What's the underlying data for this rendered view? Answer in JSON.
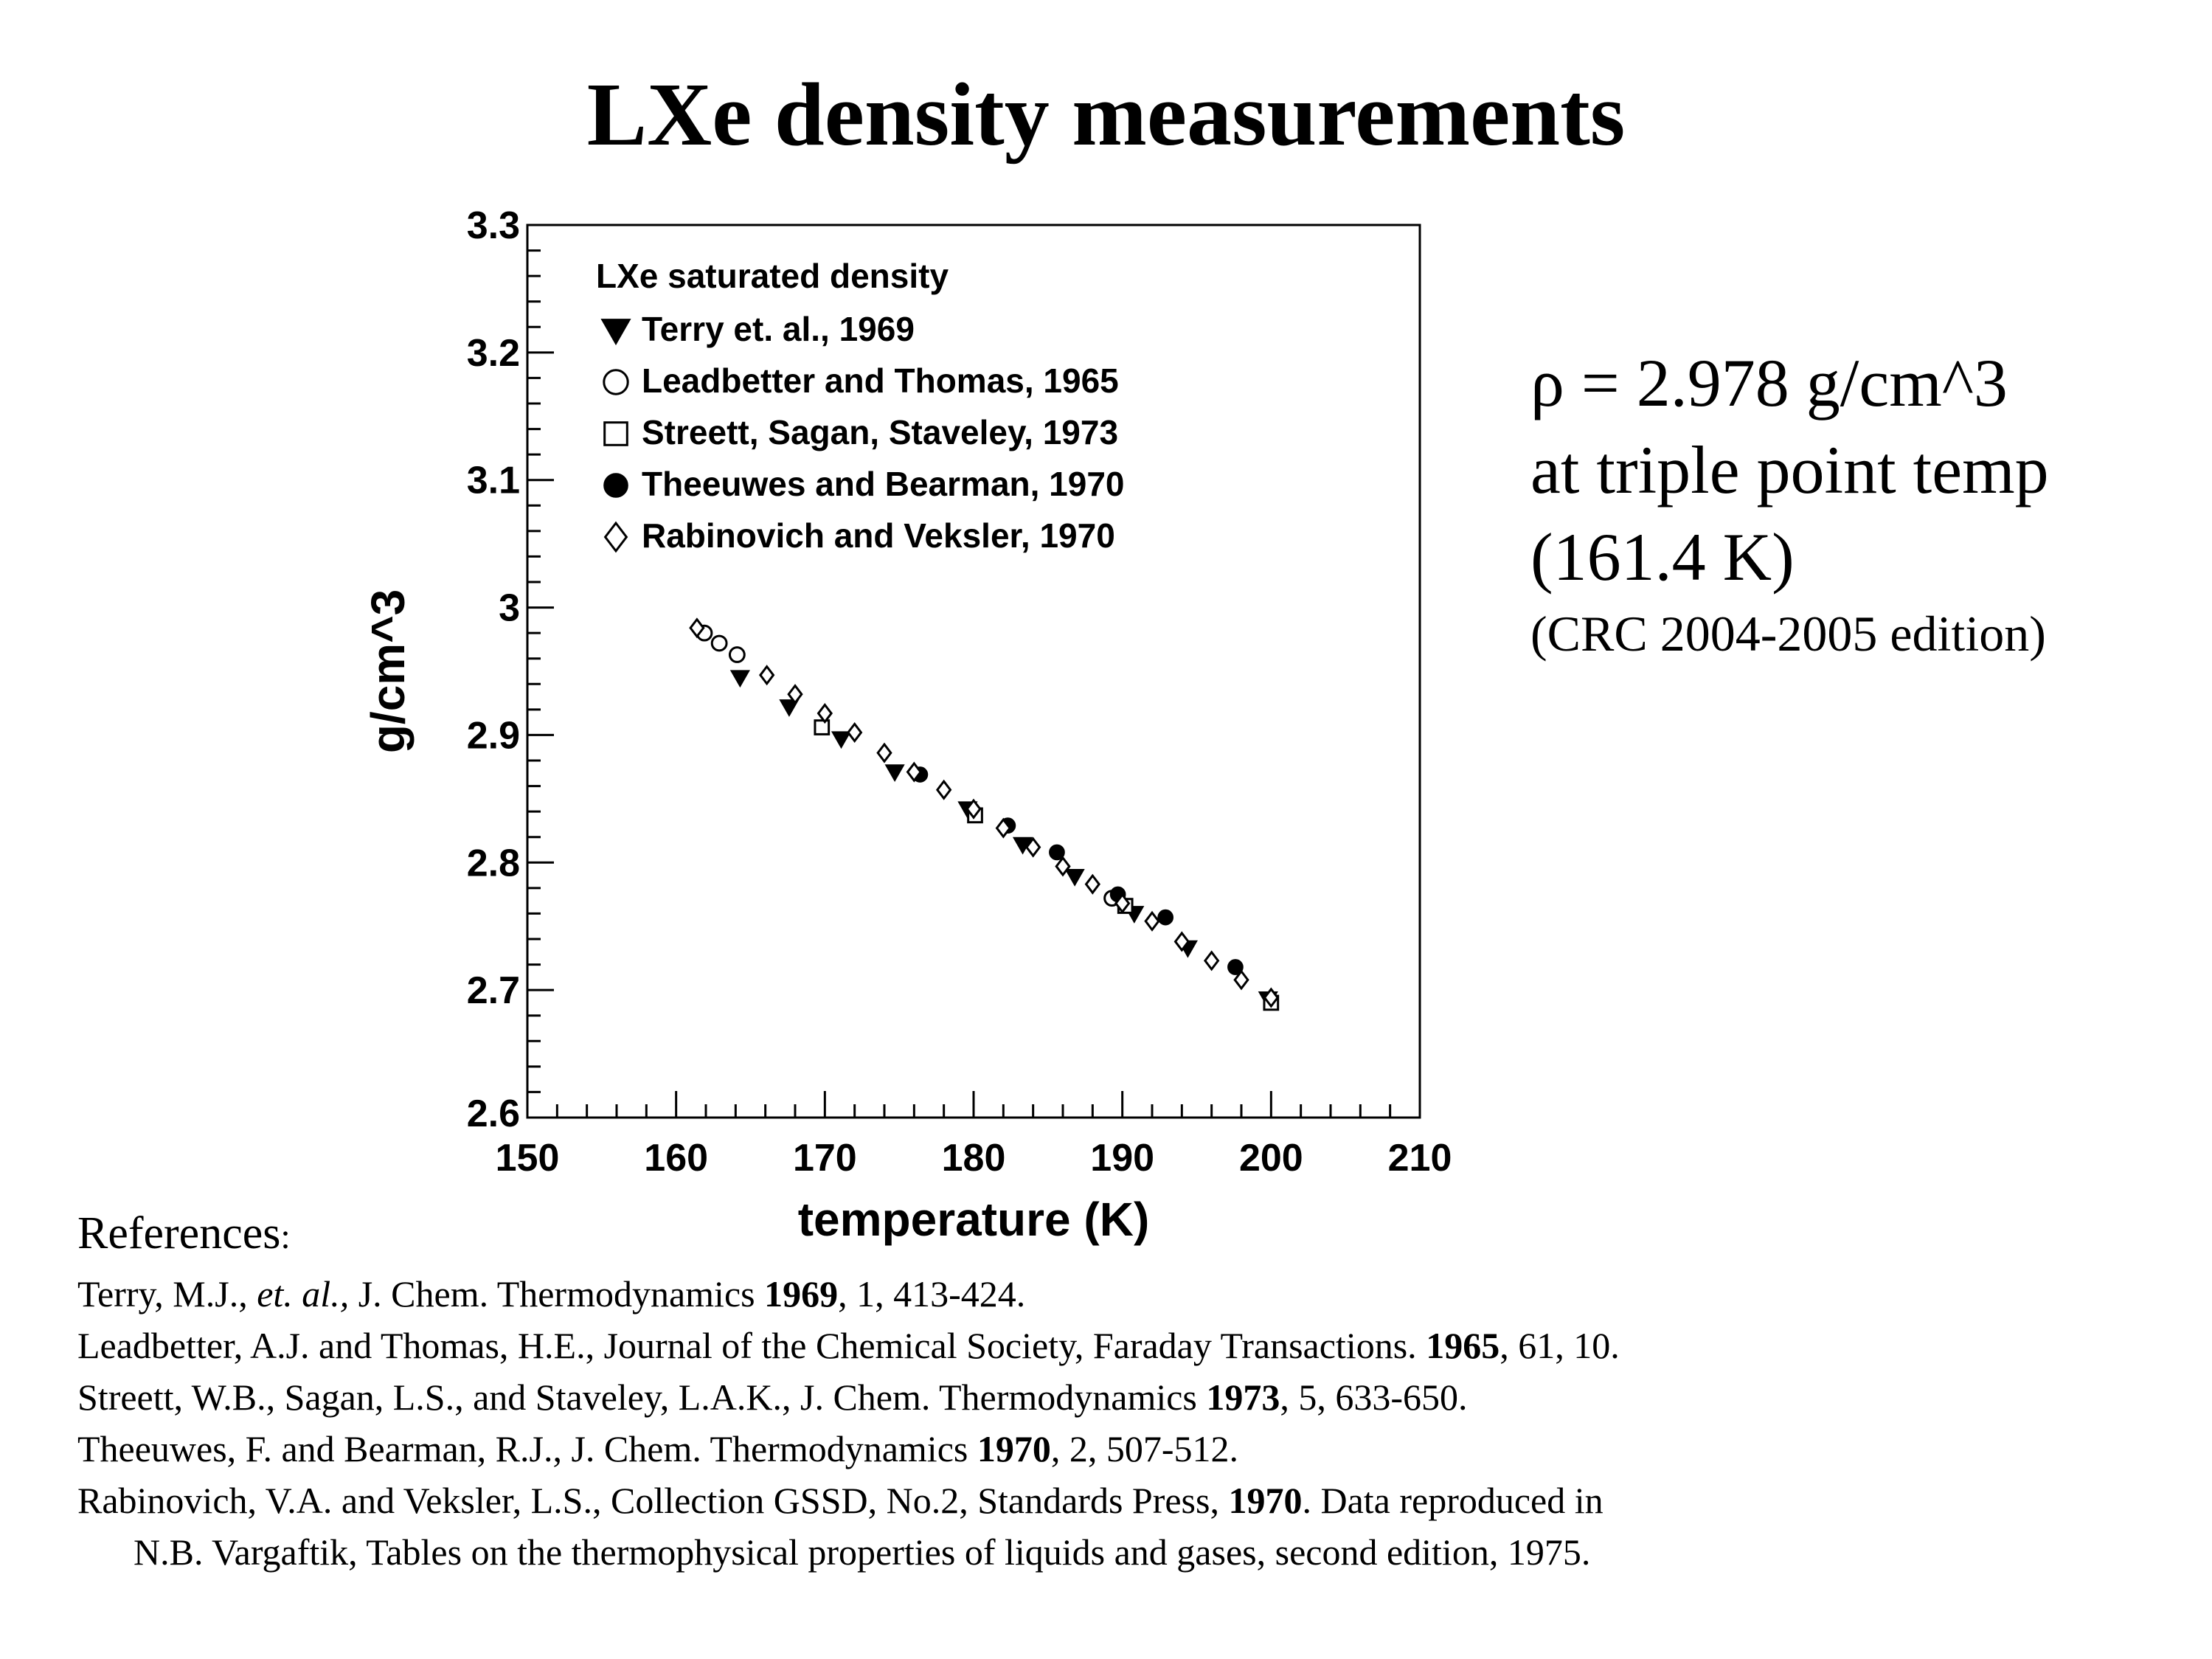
{
  "title": "LXe density measurements",
  "note": {
    "line1": "ρ  =  2.978  g/cm^3",
    "line2": "at triple point temp",
    "line3": "(161.4 K)",
    "line4": "(CRC 2004-2005 edition)"
  },
  "references": {
    "heading": "References",
    "heading_colon": ":",
    "items": [
      {
        "pre": "Terry, M.J., ",
        "italic": "et. al.,",
        "mid": " J. Chem. Thermodynamics ",
        "year": "1969",
        "post": ", 1, 413-424."
      },
      {
        "pre": "Leadbetter, A.J. and Thomas, H.E., Journal of the Chemical Society, Faraday Transactions. ",
        "year": "1965",
        "post": ", 61, 10."
      },
      {
        "pre": "Streett, W.B., Sagan, L.S., and Staveley, L.A.K., J. Chem. Thermodynamics ",
        "year": "1973",
        "post": ", 5, 633-650."
      },
      {
        "pre": "Theeuwes, F. and Bearman, R.J., J. Chem. Thermodynamics ",
        "year": "1970",
        "post": ", 2, 507-512."
      },
      {
        "pre": "Rabinovich, V.A. and Veksler, L.S., Collection GSSD, No.2, Standards Press, ",
        "year": "1970",
        "post": ". Data reproduced in",
        "cont": "N.B. Vargaftik, Tables on the thermophysical properties of liquids and gases, second edition, 1975."
      }
    ]
  },
  "chart_data": {
    "type": "scatter",
    "xlabel": "temperature (K)",
    "ylabel": "g/cm^3",
    "xlim": [
      150,
      210
    ],
    "ylim": [
      2.6,
      3.3
    ],
    "xticks": [
      "150",
      "160",
      "170",
      "180",
      "190",
      "200",
      "210"
    ],
    "yticks": [
      "2.6",
      "2.7",
      "2.8",
      "2.9",
      "3",
      "3.1",
      "3.2",
      "3.3"
    ],
    "grid": false,
    "legend_title": "LXe saturated density",
    "legend_position": "top-left",
    "series": [
      {
        "name": "Terry et. al., 1969",
        "marker": "filled-triangle-down",
        "points": [
          [
            164.3,
            2.945
          ],
          [
            167.6,
            2.922
          ],
          [
            171.1,
            2.897
          ],
          [
            174.7,
            2.871
          ],
          [
            179.6,
            2.842
          ],
          [
            183.3,
            2.814
          ],
          [
            186.8,
            2.789
          ],
          [
            190.8,
            2.76
          ],
          [
            194.4,
            2.733
          ],
          [
            199.8,
            2.693
          ]
        ]
      },
      {
        "name": "Leadbetter and Thomas, 1965",
        "marker": "open-circle",
        "points": [
          [
            161.9,
            2.98
          ],
          [
            162.9,
            2.972
          ],
          [
            164.1,
            2.963
          ],
          [
            189.3,
            2.772
          ]
        ]
      },
      {
        "name": "Streett, Sagan, Staveley, 1973",
        "marker": "open-square",
        "points": [
          [
            169.8,
            2.906
          ],
          [
            180.1,
            2.837
          ],
          [
            190.2,
            2.766
          ],
          [
            200.0,
            2.69
          ]
        ]
      },
      {
        "name": "Theeuwes and Bearman, 1970",
        "marker": "filled-circle",
        "points": [
          [
            176.4,
            2.869
          ],
          [
            182.3,
            2.829
          ],
          [
            185.6,
            2.808
          ],
          [
            189.7,
            2.775
          ],
          [
            192.9,
            2.757
          ],
          [
            197.6,
            2.718
          ]
        ]
      },
      {
        "name": "Rabinovich and Veksler, 1970",
        "marker": "open-diamond",
        "points": [
          [
            161.4,
            2.984
          ],
          [
            166.1,
            2.947
          ],
          [
            168.0,
            2.932
          ],
          [
            170.0,
            2.917
          ],
          [
            172.0,
            2.902
          ],
          [
            174.0,
            2.886
          ],
          [
            176.0,
            2.871
          ],
          [
            178.0,
            2.857
          ],
          [
            180.0,
            2.842
          ],
          [
            182.0,
            2.827
          ],
          [
            184.0,
            2.812
          ],
          [
            186.0,
            2.797
          ],
          [
            188.0,
            2.783
          ],
          [
            190.0,
            2.768
          ],
          [
            192.0,
            2.754
          ],
          [
            194.0,
            2.738
          ],
          [
            196.0,
            2.723
          ],
          [
            198.0,
            2.708
          ],
          [
            200.0,
            2.694
          ]
        ]
      }
    ]
  }
}
